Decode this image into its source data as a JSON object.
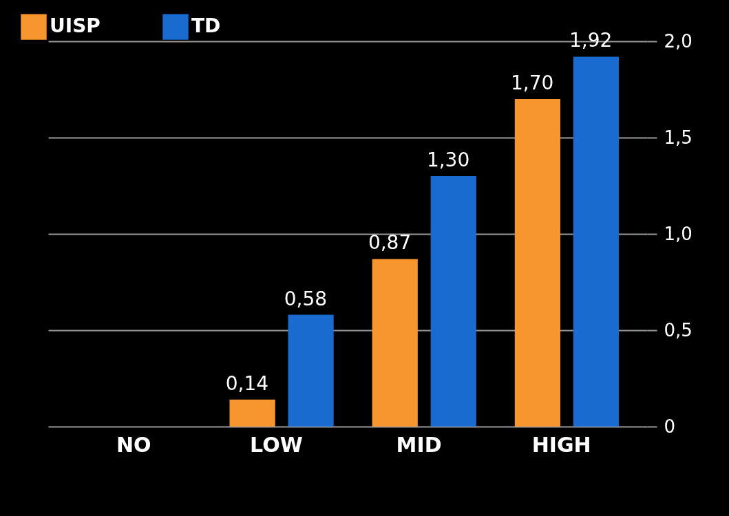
{
  "chart_data": {
    "type": "bar",
    "categories": [
      "NO",
      "LOW",
      "MID",
      "HIGH"
    ],
    "series": [
      {
        "name": "UISP",
        "color": "#f7962f",
        "values": [
          null,
          0.14,
          0.87,
          1.7
        ],
        "value_labels": [
          null,
          "0,14",
          "0,87",
          "1,70"
        ]
      },
      {
        "name": "TD",
        "color": "#1a6bd0",
        "values": [
          null,
          0.58,
          1.3,
          1.92
        ],
        "value_labels": [
          null,
          "0,58",
          "1,30",
          "1,92"
        ]
      }
    ],
    "ylim": [
      0,
      2
    ],
    "yticks": [
      0,
      {
        "value": 0.5,
        "label": "0,5"
      },
      {
        "value": 1,
        "label": "1,0"
      },
      {
        "value": 1.5,
        "label": "1,5"
      },
      {
        "value": 2,
        "label": "2,0"
      }
    ],
    "grid": "y",
    "legend": "top left"
  }
}
